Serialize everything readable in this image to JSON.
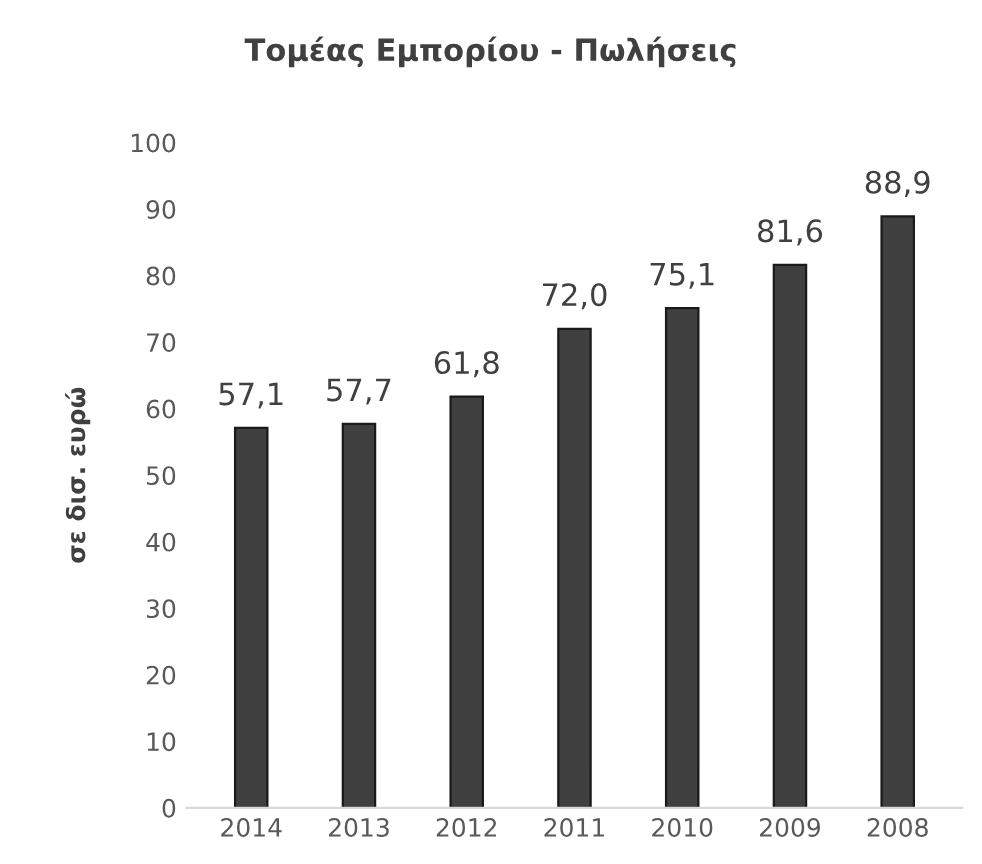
{
  "chart_data": {
    "type": "bar",
    "title": "Τομέας Εμπορίου - Πωλήσεις",
    "ylabel": "σε δισ. ευρώ",
    "categories": [
      "2014",
      "2013",
      "2012",
      "2011",
      "2010",
      "2009",
      "2008"
    ],
    "values": [
      57.1,
      57.7,
      61.8,
      72.0,
      75.1,
      81.6,
      88.9
    ],
    "value_labels": [
      "57,1",
      "57,7",
      "61,8",
      "72,0",
      "75,1",
      "81,6",
      "88,9"
    ],
    "color": "#404040",
    "ylim": [
      0,
      100
    ],
    "yticks": [
      0,
      10,
      20,
      30,
      40,
      50,
      60,
      70,
      80,
      90,
      100
    ],
    "grid": false,
    "legend": false
  }
}
